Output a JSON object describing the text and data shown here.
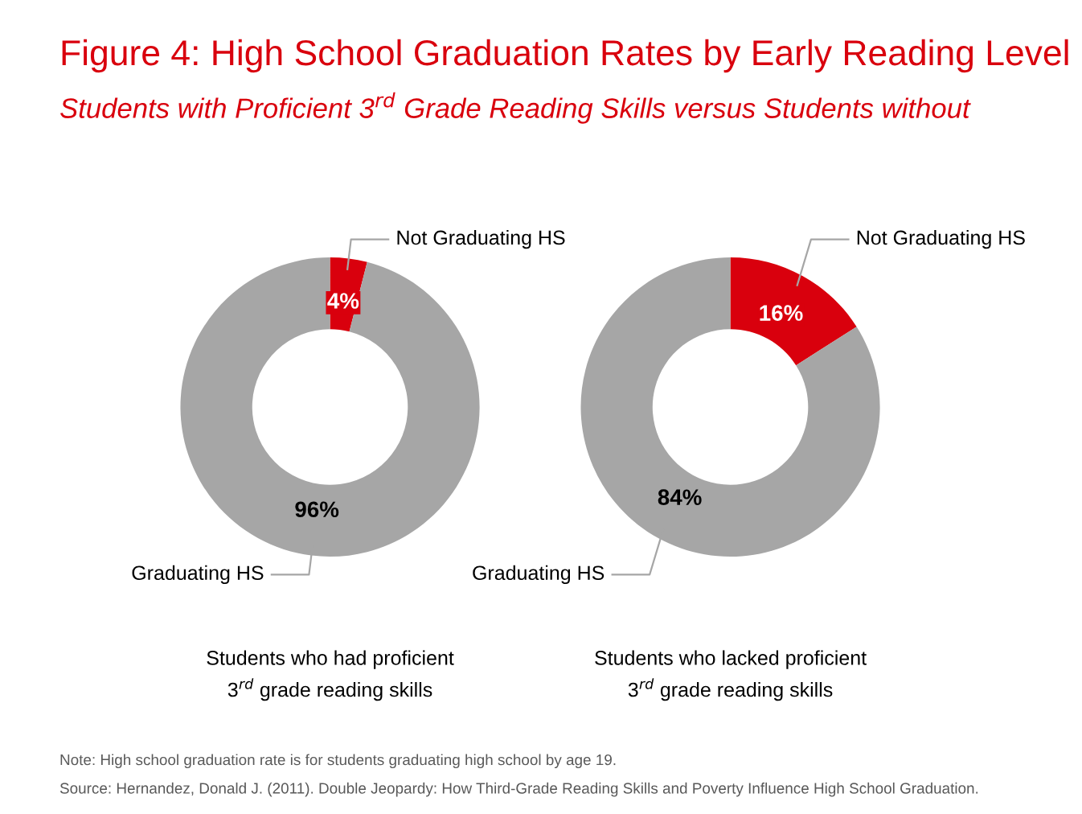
{
  "chart_data": [
    {
      "type": "donut",
      "title": "Figure 4: High School Graduation Rates by Early Reading Level",
      "subtitle": "Students with Proficient 3$^{rd}$ Grade Reading Skills versus Students without",
      "categories": [
        "Not Graduating HS",
        "Graduating HS"
      ],
      "values": [
        4,
        96
      ],
      "colors": [
        "#d9000d",
        "#a6a6a6"
      ],
      "value_labels": [
        "4%",
        "96%"
      ],
      "annotations": [
        "Students who had proficient\n3$^{rd}$ grade reading skills"
      ]
    },
    {
      "type": "donut",
      "categories": [
        "Not Graduating HS",
        "Graduating HS"
      ],
      "values": [
        16,
        84
      ],
      "colors": [
        "#d9000d",
        "#a6a6a6"
      ],
      "value_labels": [
        "16%",
        "84%"
      ],
      "annotations": [
        "Students who lacked proficient\n3$^{rd}$ grade reading skills",
        "Note: High school graduation rate is for students graduating high school by age 19.",
        "Source: Hernandez, Donald J. (2011). Double Jeopardy: How Third-Grade Reading Skills and Poverty Influence High School Graduation."
      ]
    }
  ]
}
